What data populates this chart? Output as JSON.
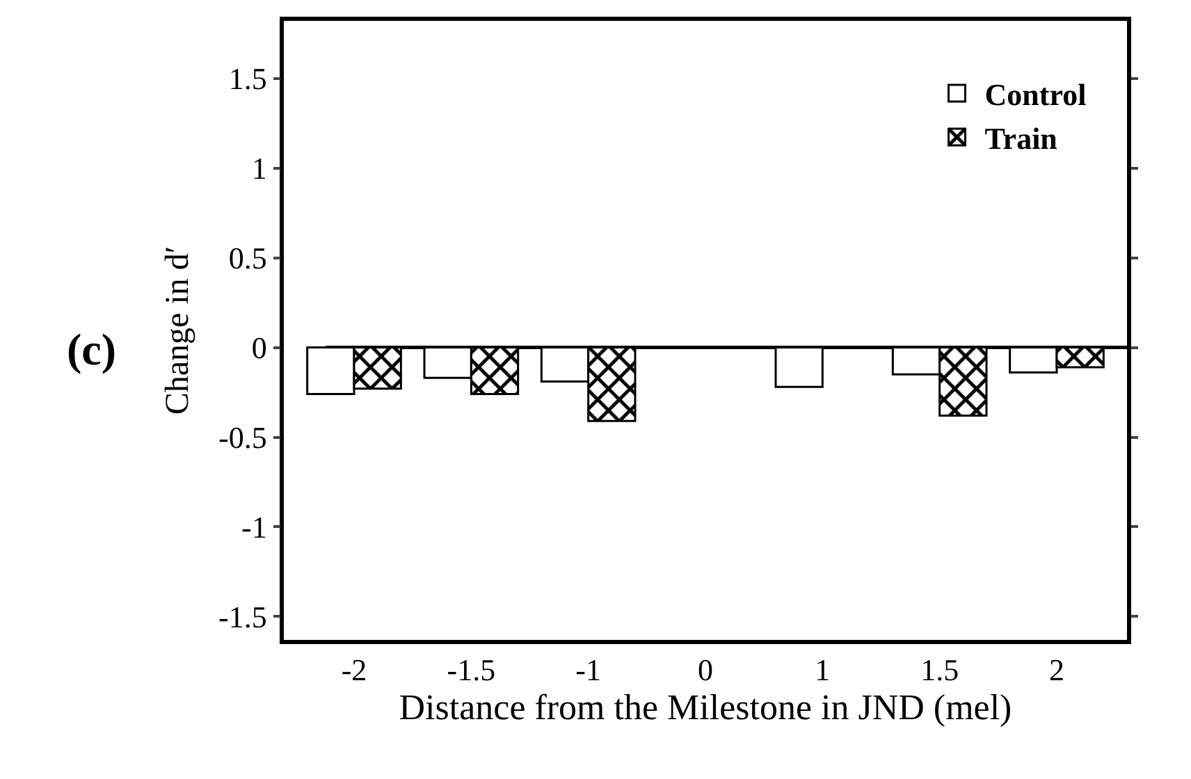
{
  "chart_data": {
    "type": "bar",
    "xlabel": "Distance from the Milestone in JND (mel)",
    "ylabel": "Change in d′",
    "categories": [
      "-2",
      "-1.5",
      "-1",
      "0",
      "1",
      "1.5",
      "2"
    ],
    "series": [
      {
        "name": "Control",
        "color": "#000000",
        "values": [
          -0.26,
          -0.17,
          -0.19,
          null,
          -0.22,
          -0.15,
          -0.14
        ]
      },
      {
        "name": "Train",
        "color": "#000000",
        "values": [
          -0.23,
          -0.26,
          -0.41,
          null,
          null,
          -0.38,
          -0.11
        ]
      }
    ],
    "ylim": [
      -1.63,
      1.82
    ],
    "yticks": [
      -1.5,
      -1,
      -0.5,
      0,
      0.5,
      1,
      1.5
    ],
    "grid": false,
    "legend": "top right",
    "ref_lines": [
      {
        "axis": "y",
        "value": 0,
        "color": "#000000"
      }
    ],
    "annotations": [
      "(c)"
    ]
  }
}
